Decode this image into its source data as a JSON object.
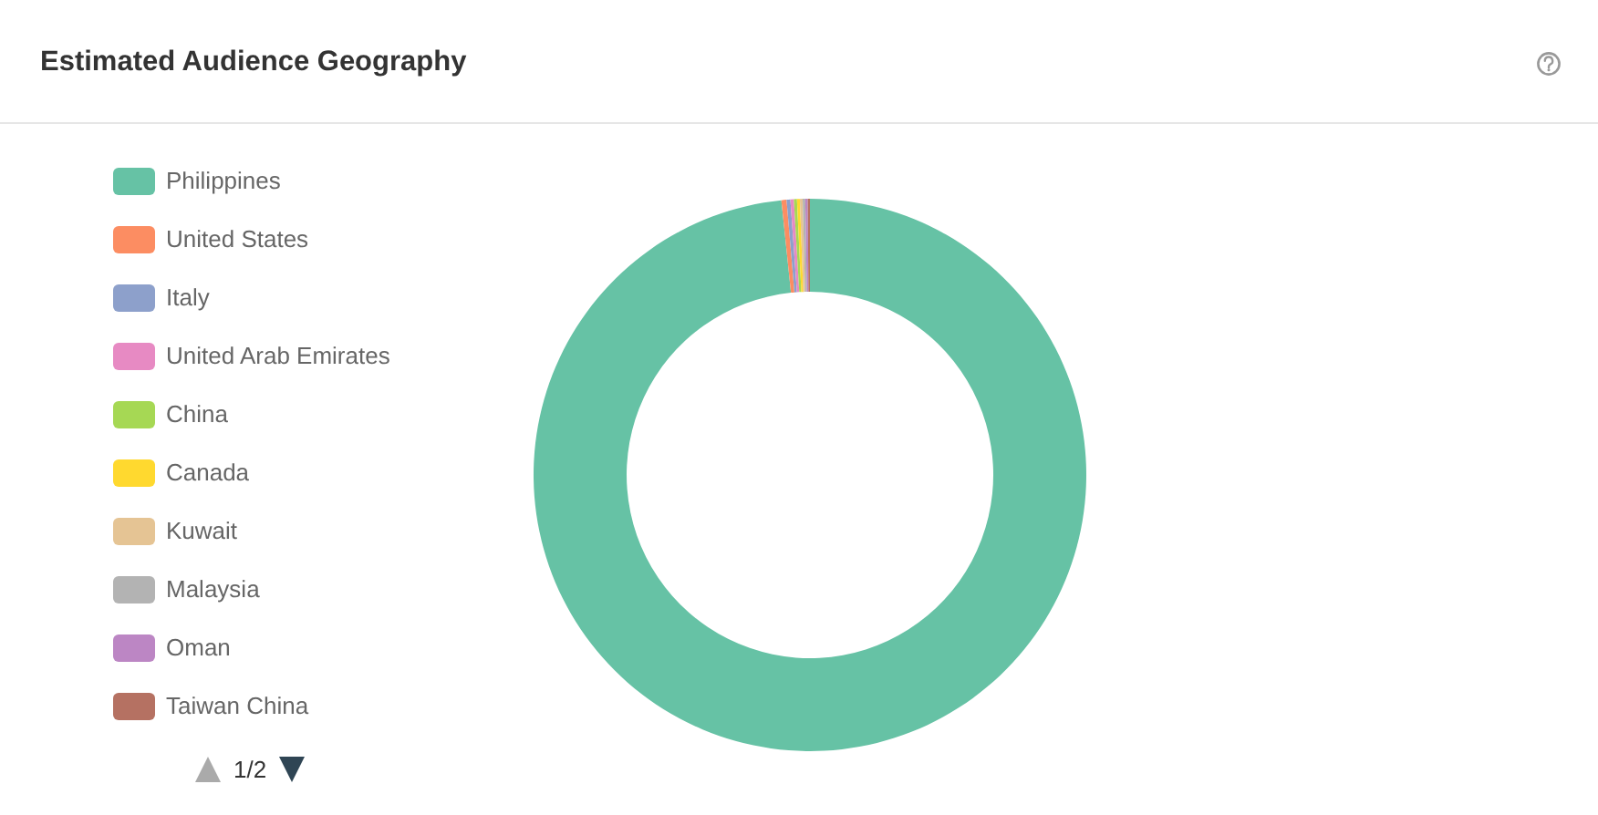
{
  "chart_data": {
    "type": "donut",
    "title": "Estimated Audience Geography",
    "categories": [
      "Philippines",
      "United States",
      "Italy",
      "United Arab Emirates",
      "China",
      "Canada",
      "Kuwait",
      "Malaysia",
      "Oman",
      "Taiwan China"
    ],
    "values": [
      98.35,
      0.3,
      0.22,
      0.2,
      0.18,
      0.17,
      0.16,
      0.15,
      0.14,
      0.13
    ],
    "colors": [
      "#66c2a5",
      "#fc8d62",
      "#8da0cb",
      "#e78ac3",
      "#a6d854",
      "#ffd92f",
      "#e5c494",
      "#b3b3b3",
      "#bc86c4",
      "#b57162"
    ],
    "legend": "left",
    "annotations": [
      "1/2"
    ]
  }
}
